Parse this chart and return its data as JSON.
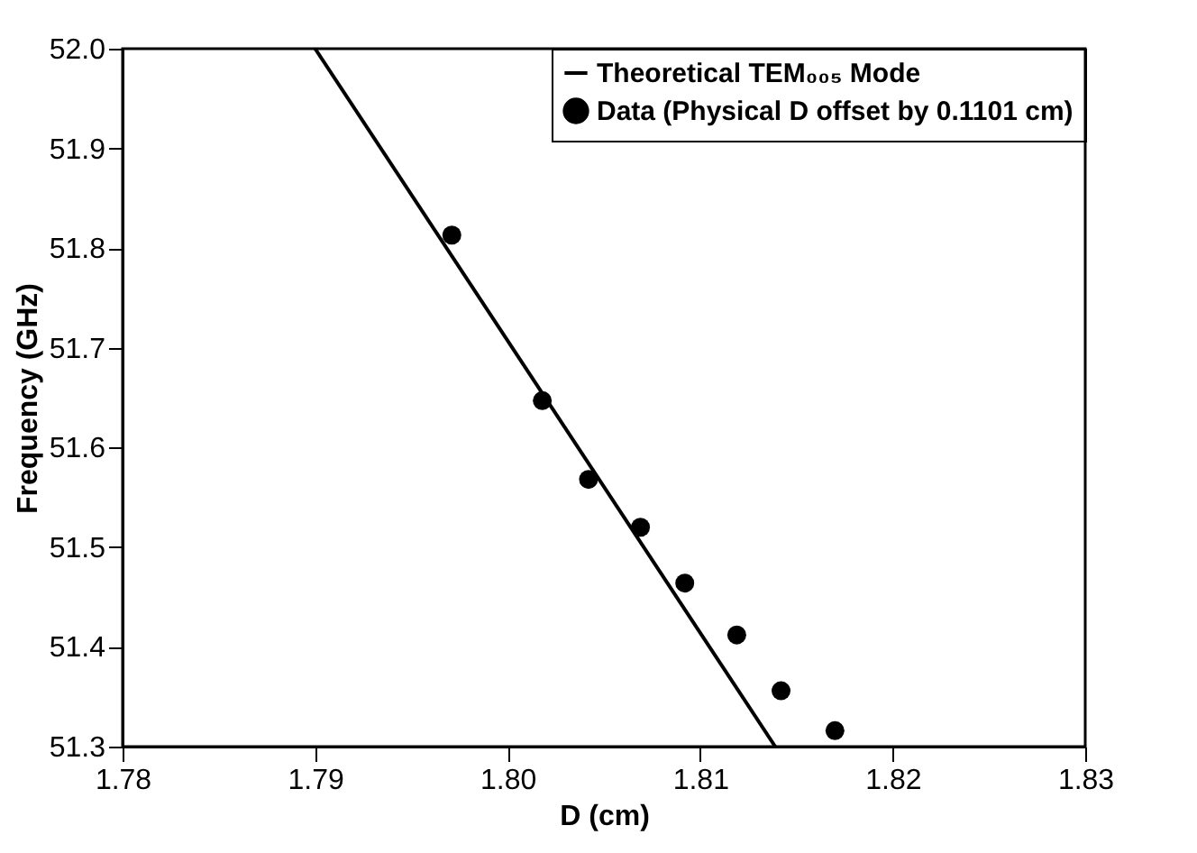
{
  "chart_data": {
    "type": "scatter",
    "xlabel": "D (cm)",
    "ylabel": "Frequency (GHz)",
    "xlim": [
      1.78,
      1.83
    ],
    "xticks": [
      {
        "value": 1.78,
        "label": "1.78"
      },
      {
        "value": 1.79,
        "label": "1.79"
      },
      {
        "value": 1.8,
        "label": "1.80"
      },
      {
        "value": 1.81,
        "label": "1.81"
      },
      {
        "value": 1.82,
        "label": "1.82"
      },
      {
        "value": 1.83,
        "label": "1.83"
      }
    ],
    "ylim": [
      51.3,
      52.0
    ],
    "yticks": [
      {
        "value": 51.3,
        "label": "51.3"
      },
      {
        "value": 51.4,
        "label": "51.4"
      },
      {
        "value": 51.5,
        "label": "51.5"
      },
      {
        "value": 51.6,
        "label": "51.6"
      },
      {
        "value": 51.7,
        "label": "51.7"
      },
      {
        "value": 51.8,
        "label": "51.8"
      },
      {
        "value": 51.9,
        "label": "51.9"
      },
      {
        "value": 52.0,
        "label": "52.0"
      }
    ],
    "grid": false,
    "legend": "top right",
    "series": [
      {
        "name": "Theoretical TEM₀₀₅ Mode",
        "type": "line",
        "color": "#000000",
        "line_style": "solid",
        "x": [
          1.79,
          1.8139
        ],
        "values": [
          52.0,
          51.3
        ]
      },
      {
        "name": "Data (Physical D offset by 0.1101 cm)",
        "type": "scatter",
        "color": "#000000",
        "marker": "circle",
        "x": [
          1.7971,
          1.8018,
          1.8042,
          1.8069,
          1.8092,
          1.8119,
          1.8142,
          1.817
        ],
        "values": [
          51.813,
          51.647,
          51.568,
          51.52,
          51.464,
          51.412,
          51.356,
          51.316
        ]
      }
    ]
  }
}
